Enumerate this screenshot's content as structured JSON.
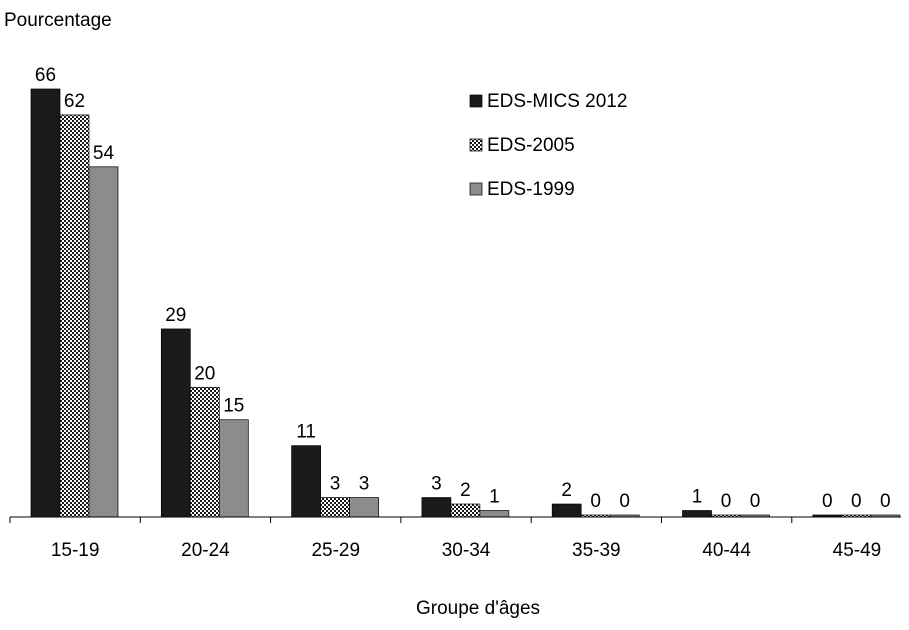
{
  "chart_data": {
    "type": "bar",
    "title": "",
    "ylabel": "Pourcentage",
    "xlabel": "Groupe d'âges",
    "categories": [
      "15-19",
      "20-24",
      "25-29",
      "30-34",
      "35-39",
      "40-44",
      "45-49"
    ],
    "series": [
      {
        "name": "EDS-MICS 2012",
        "values": [
          66,
          29,
          11,
          3,
          2,
          1,
          0
        ],
        "color": "#1a1a1a",
        "pattern": "solid"
      },
      {
        "name": "EDS-2005",
        "values": [
          62,
          20,
          3,
          2,
          0,
          0,
          0
        ],
        "color": "#bdbdbd",
        "pattern": "checkered"
      },
      {
        "name": "EDS-1999",
        "values": [
          54,
          15,
          3,
          1,
          0,
          0,
          0
        ],
        "color": "#8c8c8c",
        "pattern": "solid"
      }
    ],
    "data_labels": true,
    "ylim": [
      0,
      66
    ],
    "grid": false,
    "legend_position": "top-right"
  }
}
